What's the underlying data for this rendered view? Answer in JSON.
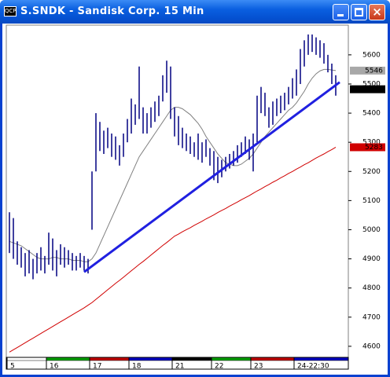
{
  "chart_data": {
    "type": "ohlc",
    "title": "S.SNDK - Sandisk Corp. 15 Min",
    "categories": [
      "5",
      null,
      null,
      null,
      null,
      null,
      null,
      null,
      null,
      null,
      "16",
      null,
      null,
      null,
      null,
      null,
      null,
      null,
      null,
      null,
      null,
      "17",
      null,
      null,
      null,
      null,
      null,
      null,
      null,
      null,
      null,
      "18",
      null,
      null,
      null,
      null,
      null,
      null,
      null,
      null,
      null,
      null,
      "21",
      null,
      null,
      null,
      null,
      null,
      null,
      null,
      null,
      null,
      "22",
      null,
      null,
      null,
      null,
      null,
      null,
      null,
      null,
      null,
      "23",
      null,
      null,
      null,
      null,
      null,
      null,
      null,
      null,
      null,
      null,
      "24-22:30",
      null,
      null,
      null,
      null,
      null,
      null,
      null,
      null,
      null,
      null
    ],
    "day_colors": [
      "#ffffff",
      "#00a000",
      "#c00000",
      "#0000c0",
      "#000000",
      "#00a000",
      "#c00000",
      "#0000c0"
    ],
    "high": [
      5060,
      5040,
      4960,
      4940,
      4920,
      4930,
      4900,
      4920,
      4940,
      4910,
      4990,
      4970,
      4930,
      4950,
      4940,
      4930,
      4920,
      4910,
      4920,
      4910,
      4900,
      5200,
      5400,
      5370,
      5340,
      5350,
      5330,
      5320,
      5290,
      5330,
      5380,
      5450,
      5430,
      5560,
      5420,
      5400,
      5420,
      5440,
      5460,
      5530,
      5580,
      5560,
      5420,
      5390,
      5350,
      5330,
      5320,
      5300,
      5330,
      5300,
      5310,
      5280,
      5270,
      5250,
      5240,
      5250,
      5260,
      5270,
      5290,
      5300,
      5320,
      5310,
      5330,
      5460,
      5490,
      5470,
      5420,
      5440,
      5450,
      5460,
      5470,
      5490,
      5520,
      5550,
      5620,
      5650,
      5670,
      5670,
      5660,
      5650,
      5640,
      5600,
      5570,
      5530
    ],
    "low": [
      4920,
      4900,
      4880,
      4870,
      4840,
      4850,
      4830,
      4850,
      4860,
      4850,
      4880,
      4860,
      4840,
      4880,
      4870,
      4880,
      4860,
      4860,
      4870,
      4860,
      4850,
      5000,
      5200,
      5270,
      5260,
      5280,
      5250,
      5240,
      5220,
      5250,
      5300,
      5330,
      5360,
      5380,
      5330,
      5330,
      5350,
      5370,
      5390,
      5440,
      5470,
      5380,
      5320,
      5290,
      5280,
      5270,
      5260,
      5250,
      5240,
      5230,
      5250,
      5220,
      5170,
      5160,
      5180,
      5200,
      5210,
      5220,
      5230,
      5250,
      5260,
      5240,
      5200,
      5300,
      5400,
      5390,
      5350,
      5360,
      5390,
      5400,
      5410,
      5430,
      5450,
      5460,
      5500,
      5560,
      5600,
      5610,
      5600,
      5590,
      5570,
      5540,
      5500,
      5460
    ],
    "bar_color": "#000080",
    "ma_short": {
      "color": "#808080",
      "values": [
        4960,
        4955,
        4950,
        4945,
        4935,
        4925,
        4915,
        4905,
        4900,
        4900,
        4900,
        4905,
        4905,
        4900,
        4900,
        4900,
        4895,
        4895,
        4895,
        4890,
        4890,
        4900,
        4920,
        4950,
        4980,
        5010,
        5040,
        5070,
        5100,
        5130,
        5160,
        5190,
        5220,
        5250,
        5270,
        5290,
        5310,
        5330,
        5350,
        5370,
        5390,
        5410,
        5420,
        5420,
        5415,
        5405,
        5395,
        5380,
        5365,
        5345,
        5320,
        5300,
        5280,
        5260,
        5245,
        5230,
        5225,
        5220,
        5220,
        5225,
        5235,
        5245,
        5260,
        5280,
        5300,
        5320,
        5335,
        5350,
        5365,
        5380,
        5395,
        5410,
        5420,
        5435,
        5455,
        5475,
        5500,
        5520,
        5535,
        5545,
        5550,
        5550,
        5548,
        5546
      ]
    },
    "ma_long": {
      "color": "#d00000",
      "values": [
        4580,
        4588,
        4596,
        4604,
        4612,
        4620,
        4628,
        4636,
        4644,
        4652,
        4660,
        4668,
        4676,
        4684,
        4692,
        4700,
        4708,
        4716,
        4724,
        4732,
        4741,
        4750,
        4761,
        4772,
        4783,
        4794,
        4805,
        4816,
        4826,
        4837,
        4848,
        4859,
        4870,
        4881,
        4891,
        4902,
        4913,
        4924,
        4935,
        4946,
        4956,
        4967,
        4978,
        4985,
        4993,
        5000,
        5007,
        5015,
        5022,
        5029,
        5037,
        5044,
        5051,
        5059,
        5066,
        5073,
        5081,
        5088,
        5095,
        5103,
        5110,
        5117,
        5125,
        5133,
        5140,
        5148,
        5155,
        5163,
        5170,
        5178,
        5185,
        5193,
        5200,
        5208,
        5215,
        5223,
        5230,
        5238,
        5246,
        5253,
        5260,
        5268,
        5275,
        5283
      ]
    },
    "trendline": {
      "color": "#2020e0",
      "x": [
        19,
        84
      ],
      "values": [
        4855,
        5506
      ]
    },
    "price_tags": [
      {
        "value": 5546,
        "color": "#a8a8a8",
        "text_color": "#000000"
      },
      {
        "value": 5482,
        "color": "#000000",
        "text_color": "#ffffff"
      },
      {
        "value": 5283,
        "color": "#d00000",
        "text_color": "#ffffff"
      }
    ],
    "ylim": [
      4562,
      5702
    ],
    "yticks": [
      4600,
      4700,
      4800,
      4900,
      5000,
      5100,
      5200,
      5300,
      5400,
      5500,
      5600
    ]
  }
}
